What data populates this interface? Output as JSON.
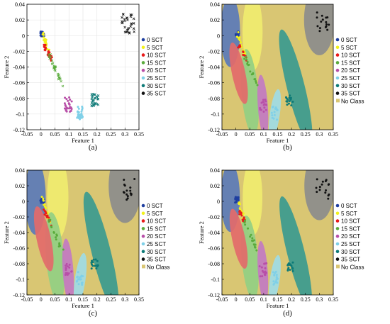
{
  "classes": [
    {
      "name": "0 SCT",
      "color": "#1f3fa0"
    },
    {
      "name": "5 SCT",
      "color": "#f2f21c"
    },
    {
      "name": "10 SCT",
      "color": "#e81a1a"
    },
    {
      "name": "15 SCT",
      "color": "#5aab3c"
    },
    {
      "name": "20 SCT",
      "color": "#b84fa8"
    },
    {
      "name": "25 SCT",
      "color": "#7fd0e8"
    },
    {
      "name": "30 SCT",
      "color": "#0d7a77"
    },
    {
      "name": "35 SCT",
      "color": "#111111"
    }
  ],
  "no_class": {
    "name": "No Class",
    "color": "#d9c673"
  },
  "region_colors": {
    "0 SCT": "#5b79b9",
    "5 SCT": "#f0ec6f",
    "10 SCT": "#e36a6a",
    "15 SCT": "#93cf83",
    "20 SCT": "#c27ac2",
    "25 SCT": "#9fdbe5",
    "30 SCT": "#3b9a8f",
    "35 SCT": "#8c8c8c"
  },
  "axes": {
    "xlabel": "Feature 1",
    "ylabel": "Feature 2",
    "xlim": [
      -0.05,
      0.35
    ],
    "ylim": [
      -0.12,
      0.04
    ],
    "xticks": [
      "-0.05",
      "0",
      "0.05",
      "0.1",
      "0.15",
      "0.2",
      "0.25",
      "0.3",
      "0.35"
    ],
    "yticks": [
      "0.04",
      "0.02",
      "0",
      "-0.02",
      "-0.04",
      "-0.06",
      "-0.08",
      "-0.1",
      "-0.12"
    ]
  },
  "chart_data": [
    {
      "panel": "(a)",
      "type": "scatter",
      "xlabel": "Feature 1",
      "ylabel": "Feature 2",
      "xlim": [
        -0.05,
        0.35
      ],
      "ylim": [
        -0.12,
        0.04
      ],
      "grid": true,
      "legend": "right",
      "legend_entries": [
        "0 SCT",
        "5 SCT",
        "10 SCT",
        "15 SCT",
        "20 SCT",
        "25 SCT",
        "30 SCT",
        "35 SCT"
      ],
      "series": [
        {
          "name": "0 SCT",
          "x_range": [
            -0.003,
            0.012
          ],
          "y_range": [
            -0.002,
            0.006
          ],
          "center": [
            0.003,
            0.002
          ]
        },
        {
          "name": "5 SCT",
          "x_range": [
            0.005,
            0.032
          ],
          "y_range": [
            -0.025,
            0.003
          ],
          "center": [
            0.018,
            -0.01
          ]
        },
        {
          "name": "10 SCT",
          "x_range": [
            0.01,
            0.038
          ],
          "y_range": [
            -0.03,
            -0.012
          ],
          "center": [
            0.02,
            -0.02
          ]
        },
        {
          "name": "15 SCT",
          "x_range": [
            0.03,
            0.078
          ],
          "y_range": [
            -0.065,
            -0.025
          ],
          "center": [
            0.053,
            -0.048
          ]
        },
        {
          "name": "20 SCT",
          "x_range": [
            0.085,
            0.11
          ],
          "y_range": [
            -0.097,
            -0.078
          ],
          "center": [
            0.097,
            -0.09
          ]
        },
        {
          "name": "25 SCT",
          "x_range": [
            0.128,
            0.15
          ],
          "y_range": [
            -0.108,
            -0.09
          ],
          "center": [
            0.14,
            -0.1
          ]
        },
        {
          "name": "30 SCT",
          "x_range": [
            0.18,
            0.205
          ],
          "y_range": [
            -0.09,
            -0.074
          ],
          "center": [
            0.193,
            -0.082
          ]
        },
        {
          "name": "35 SCT",
          "x_range": [
            0.288,
            0.335
          ],
          "y_range": [
            0.002,
            0.03
          ],
          "center": [
            0.31,
            0.015
          ]
        }
      ]
    },
    {
      "panel": "(b)",
      "type": "scatter",
      "xlabel": "Feature 1",
      "ylabel": "Feature 2",
      "xlim": [
        -0.05,
        0.35
      ],
      "ylim": [
        -0.12,
        0.04
      ],
      "legend": "right",
      "legend_entries": [
        "0 SCT",
        "5 SCT",
        "10 SCT",
        "15 SCT",
        "20 SCT",
        "25 SCT",
        "30 SCT",
        "35 SCT",
        "No Class"
      ]
    },
    {
      "panel": "(c)",
      "type": "scatter",
      "xlabel": "Feature 1",
      "ylabel": "Feature 2",
      "xlim": [
        -0.05,
        0.35
      ],
      "ylim": [
        -0.12,
        0.04
      ],
      "legend": "right",
      "legend_entries": [
        "0 SCT",
        "5 SCT",
        "10 SCT",
        "15 SCT",
        "20 SCT",
        "25 SCT",
        "30 SCT",
        "35 SCT",
        "No Class"
      ]
    },
    {
      "panel": "(d)",
      "type": "scatter",
      "xlabel": "Feature 1",
      "ylabel": "Feature 2",
      "xlim": [
        -0.05,
        0.35
      ],
      "ylim": [
        -0.12,
        0.04
      ],
      "legend": "right",
      "legend_entries": [
        "0 SCT",
        "5 SCT",
        "10 SCT",
        "15 SCT",
        "20 SCT",
        "25 SCT",
        "30 SCT",
        "35 SCT",
        "No Class"
      ]
    }
  ]
}
